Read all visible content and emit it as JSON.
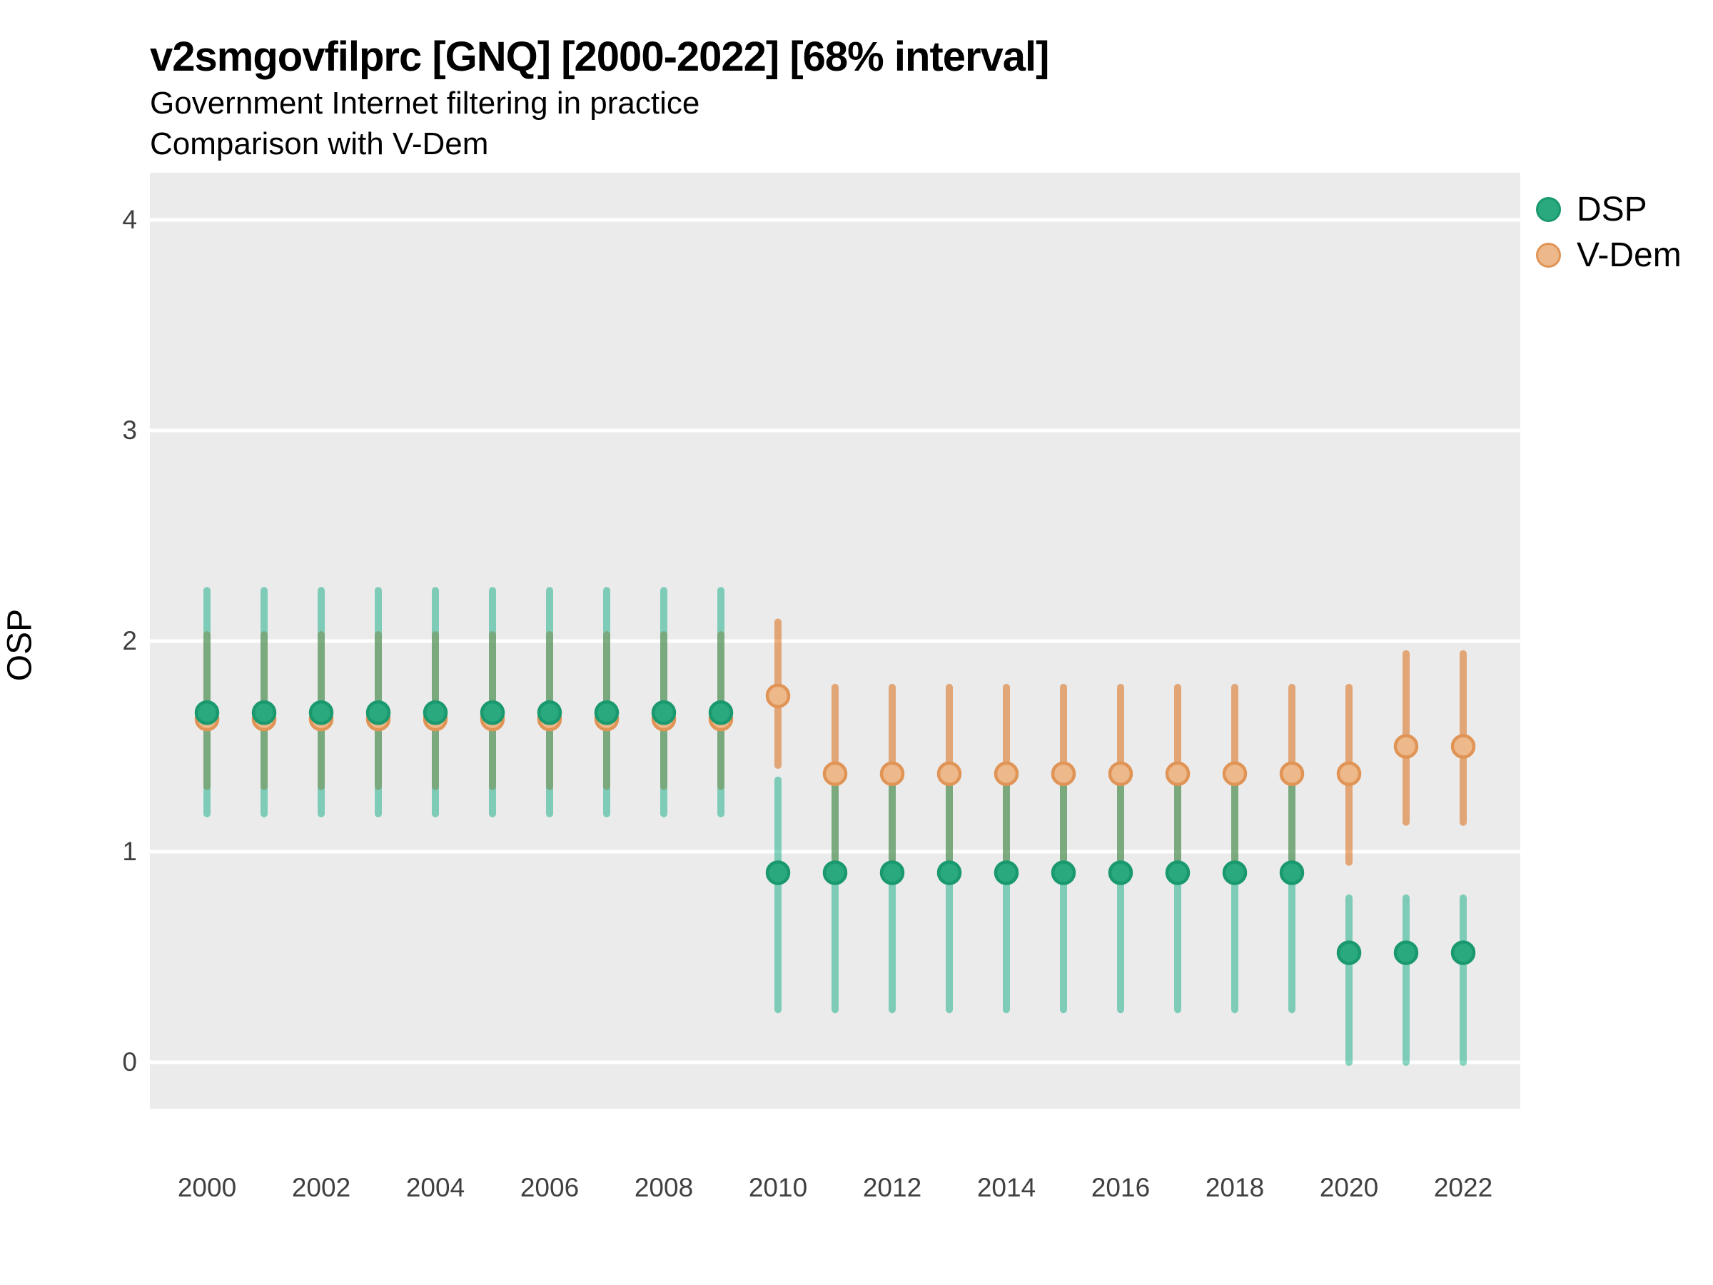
{
  "header": {
    "title": "v2smgovfilprc [GNQ] [2000-2022] [68% interval]",
    "subtitle_line1": "Government Internet filtering in practice",
    "subtitle_line2": "Comparison with V-Dem"
  },
  "axes": {
    "y_label": "OSP",
    "y_ticks": [
      0,
      1,
      2,
      3,
      4
    ],
    "x_tick_labels": [
      2000,
      2002,
      2004,
      2006,
      2008,
      2010,
      2012,
      2014,
      2016,
      2018,
      2020,
      2022
    ]
  },
  "legend": [
    {
      "label": "DSP",
      "fill": "#2aa87e",
      "border": "#1a986e"
    },
    {
      "label": "V-Dem",
      "fill": "#edb88a",
      "border": "#e09456"
    }
  ],
  "colors": {
    "panel_background": "#ebebeb",
    "gridline": "#ffffff",
    "dsp_point_fill": "#2aa87e",
    "dsp_point_border": "#1a986e",
    "dsp_interval": "rgba(17,173,133,0.5)",
    "vdem_point_fill": "#edb88a",
    "vdem_point_border": "#e09456",
    "vdem_interval": "rgba(217,95,2,0.5)"
  },
  "chart_data": {
    "type": "scatter",
    "title": "v2smgovfilprc [GNQ] [2000-2022] [68% interval]",
    "xlabel": "",
    "ylabel": "OSP",
    "ylim": [
      -0.22,
      4.22
    ],
    "x_range": [
      2000,
      2022
    ],
    "grid": "horizontal-white-on-gray",
    "legend_position": "right-top",
    "interval_note": "68% interval",
    "x": [
      2000,
      2001,
      2002,
      2003,
      2004,
      2005,
      2006,
      2007,
      2008,
      2009,
      2010,
      2011,
      2012,
      2013,
      2014,
      2015,
      2016,
      2017,
      2018,
      2019,
      2020,
      2021,
      2022
    ],
    "series": [
      {
        "name": "DSP",
        "est": [
          1.66,
          1.66,
          1.66,
          1.66,
          1.66,
          1.66,
          1.66,
          1.66,
          1.66,
          1.66,
          0.9,
          0.9,
          0.9,
          0.9,
          0.9,
          0.9,
          0.9,
          0.9,
          0.9,
          0.9,
          0.52,
          0.52,
          0.52
        ],
        "lo": [
          1.18,
          1.18,
          1.18,
          1.18,
          1.18,
          1.18,
          1.18,
          1.18,
          1.18,
          1.18,
          0.25,
          0.25,
          0.25,
          0.25,
          0.25,
          0.25,
          0.25,
          0.25,
          0.25,
          0.25,
          0.0,
          0.0,
          0.0
        ],
        "hi": [
          2.24,
          2.24,
          2.24,
          2.24,
          2.24,
          2.24,
          2.24,
          2.24,
          2.24,
          2.24,
          1.34,
          1.34,
          1.34,
          1.34,
          1.34,
          1.34,
          1.34,
          1.34,
          1.34,
          1.34,
          0.78,
          0.78,
          0.78
        ]
      },
      {
        "name": "V-Dem",
        "est": [
          1.63,
          1.63,
          1.63,
          1.63,
          1.63,
          1.63,
          1.63,
          1.63,
          1.63,
          1.63,
          1.74,
          1.37,
          1.37,
          1.37,
          1.37,
          1.37,
          1.37,
          1.37,
          1.37,
          1.37,
          1.37,
          1.5,
          1.5
        ],
        "lo": [
          1.31,
          1.31,
          1.31,
          1.31,
          1.31,
          1.31,
          1.31,
          1.31,
          1.31,
          1.31,
          1.41,
          0.96,
          0.96,
          0.96,
          0.96,
          0.96,
          0.96,
          0.96,
          0.96,
          0.96,
          0.95,
          1.14,
          1.14
        ],
        "hi": [
          2.03,
          2.03,
          2.03,
          2.03,
          2.03,
          2.03,
          2.03,
          2.03,
          2.03,
          2.03,
          2.09,
          1.78,
          1.78,
          1.78,
          1.78,
          1.78,
          1.78,
          1.78,
          1.78,
          1.78,
          1.78,
          1.94,
          1.94
        ]
      }
    ]
  }
}
